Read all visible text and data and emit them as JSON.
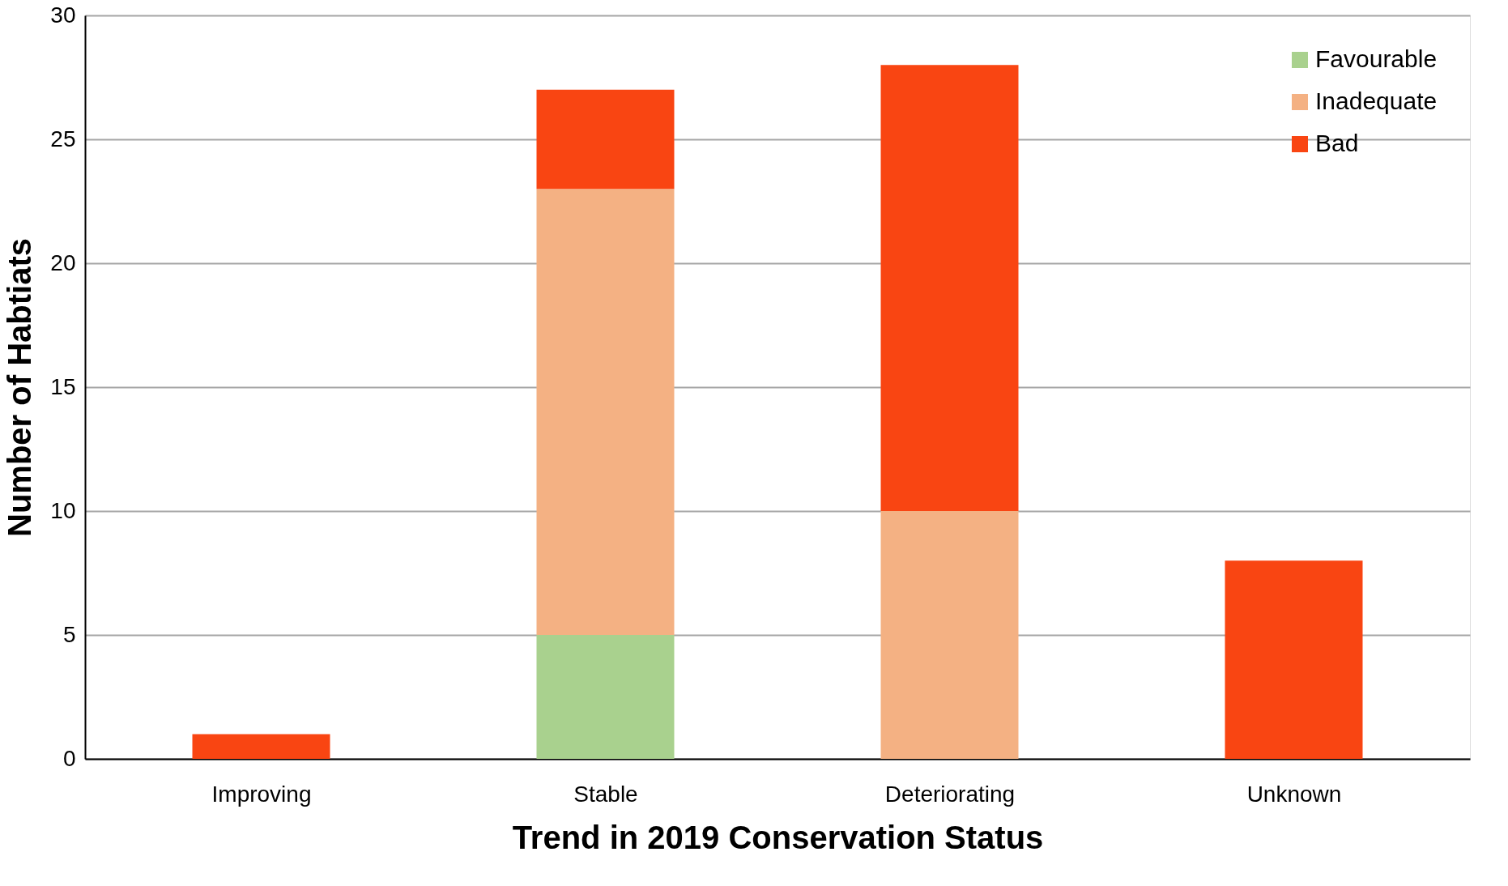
{
  "chart_data": {
    "type": "bar",
    "stacked": true,
    "xlabel": "Trend in 2019 Conservation Status",
    "ylabel": "Number of Habtiats",
    "categories": [
      "Improving",
      "Stable",
      "Deteriorating",
      "Unknown"
    ],
    "series": [
      {
        "name": "Favourable",
        "color": "#a9d18e",
        "values": [
          null,
          5,
          null,
          null
        ]
      },
      {
        "name": "Inadequate",
        "color": "#f4b183",
        "values": [
          null,
          18,
          10,
          null
        ]
      },
      {
        "name": "Bad",
        "color": "#f94512",
        "values": [
          1,
          4,
          18,
          8
        ]
      }
    ],
    "ylim": [
      0,
      30
    ],
    "yticks": [
      0,
      5,
      10,
      15,
      20,
      25,
      30
    ],
    "grid": "y",
    "legend": "top right"
  }
}
